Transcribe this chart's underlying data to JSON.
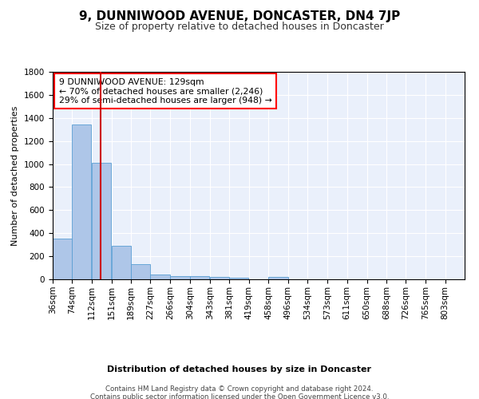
{
  "title": "9, DUNNIWOOD AVENUE, DONCASTER, DN4 7JP",
  "subtitle": "Size of property relative to detached houses in Doncaster",
  "xlabel": "Distribution of detached houses by size in Doncaster",
  "ylabel": "Number of detached properties",
  "footer1": "Contains HM Land Registry data © Crown copyright and database right 2024.",
  "footer2": "Contains public sector information licensed under the Open Government Licence v3.0.",
  "annotation_title": "9 DUNNIWOOD AVENUE: 129sqm",
  "annotation_line2": "← 70% of detached houses are smaller (2,246)",
  "annotation_line3": "29% of semi-detached houses are larger (948) →",
  "property_size": 129,
  "bin_labels": [
    "36sqm",
    "74sqm",
    "112sqm",
    "151sqm",
    "189sqm",
    "227sqm",
    "266sqm",
    "304sqm",
    "343sqm",
    "381sqm",
    "419sqm",
    "458sqm",
    "496sqm",
    "534sqm",
    "573sqm",
    "611sqm",
    "650sqm",
    "688sqm",
    "726sqm",
    "765sqm",
    "803sqm"
  ],
  "bin_edges": [
    36,
    74,
    112,
    151,
    189,
    227,
    266,
    304,
    343,
    381,
    419,
    458,
    496,
    534,
    573,
    611,
    650,
    688,
    726,
    765,
    803
  ],
  "bar_heights": [
    355,
    1340,
    1010,
    290,
    130,
    40,
    30,
    25,
    20,
    15,
    0,
    20,
    0,
    0,
    0,
    0,
    0,
    0,
    0,
    0
  ],
  "bar_color": "#aec6e8",
  "bar_edge_color": "#5a9fd4",
  "red_line_x": 129,
  "ylim": [
    0,
    1800
  ],
  "yticks": [
    0,
    200,
    400,
    600,
    800,
    1000,
    1200,
    1400,
    1600,
    1800
  ],
  "bg_color": "#eaf0fb",
  "annotation_box_color": "white",
  "annotation_box_edge": "red",
  "red_line_color": "#cc0000"
}
